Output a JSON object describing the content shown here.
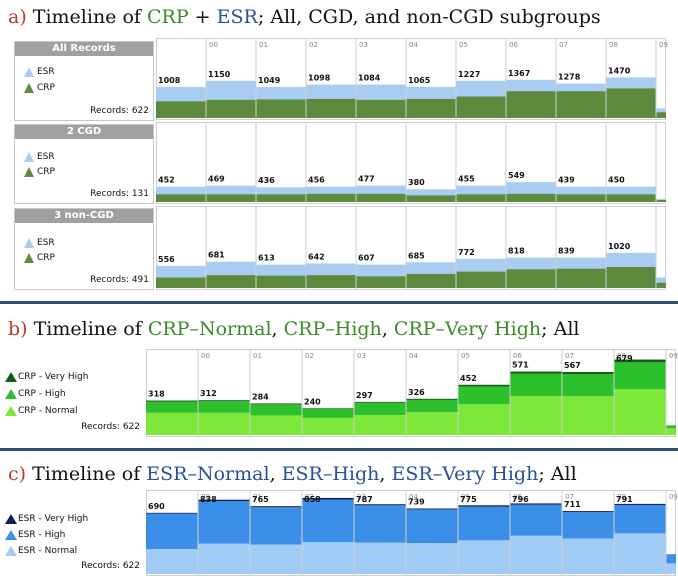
{
  "sections": [
    {
      "prefix": "a) ",
      "parts": [
        {
          "t": "Timeline of ",
          "c": "#111111"
        },
        {
          "t": "CRP",
          "c": "#3a8a2a"
        },
        {
          "t": " + ",
          "c": "#111111"
        },
        {
          "t": "ESR",
          "c": "#2a4f9c"
        },
        {
          "t": "; All, CGD, and non-CGD subgroups",
          "c": "#111111"
        }
      ]
    },
    {
      "prefix": "b) ",
      "parts": [
        {
          "t": "Timeline of ",
          "c": "#111111"
        },
        {
          "t": "CRP–Normal",
          "c": "#3a8a2a"
        },
        {
          "t": ", ",
          "c": "#111111"
        },
        {
          "t": "CRP–High",
          "c": "#3a8a2a"
        },
        {
          "t": ", ",
          "c": "#111111"
        },
        {
          "t": "CRP–Very High",
          "c": "#3a8a2a"
        },
        {
          "t": "; All",
          "c": "#111111"
        }
      ]
    },
    {
      "prefix": "c) ",
      "parts": [
        {
          "t": "Timeline of ",
          "c": "#111111"
        },
        {
          "t": "ESR–Normal",
          "c": "#2a4f9c"
        },
        {
          "t": ", ",
          "c": "#111111"
        },
        {
          "t": "ESR–High",
          "c": "#2a4f9c"
        },
        {
          "t": ", ",
          "c": "#111111"
        },
        {
          "t": "ESR–Very High",
          "c": "#2a4f9c"
        },
        {
          "t": "; All",
          "c": "#111111"
        }
      ]
    }
  ],
  "colors": {
    "esr_light": "#a9cdf2",
    "crp_dark": "#5e8a3e",
    "crp_normal": "#7ee83a",
    "crp_high": "#2cc02c",
    "crp_vhigh": "#155c1a",
    "esr_normal": "#9fcbf5",
    "esr_high": "#3b8fe8",
    "esr_vhigh": "#0e1a5a"
  },
  "chart_data": [
    {
      "type": "area",
      "id": "a_all",
      "group_label": "All Records",
      "records_label": "Records: 622",
      "periods": [
        "",
        "00",
        "01",
        "02",
        "03",
        "04",
        "05",
        "06",
        "07",
        "08",
        "09"
      ],
      "totals": [
        1008,
        1150,
        1049,
        1098,
        1084,
        1065,
        1227,
        1367,
        1278,
        1470,
        null
      ],
      "series": [
        {
          "name": "ESR",
          "values": [
            650,
            780,
            650,
            700,
            700,
            650,
            780,
            800,
            720,
            850,
            200
          ]
        },
        {
          "name": "CRP",
          "values": [
            350,
            380,
            390,
            400,
            380,
            400,
            450,
            560,
            560,
            620,
            120
          ]
        }
      ],
      "ylim": [
        0,
        1550
      ]
    },
    {
      "type": "area",
      "id": "a_cgd",
      "group_label": "2 CGD",
      "records_label": "Records: 131",
      "periods": [
        "",
        "",
        "",
        "",
        "",
        "",
        "",
        "",
        "",
        "",
        ""
      ],
      "totals": [
        452,
        469,
        436,
        456,
        477,
        380,
        455,
        549,
        439,
        450,
        null
      ],
      "series": [
        {
          "name": "ESR",
          "values": [
            300,
            320,
            290,
            300,
            320,
            250,
            320,
            390,
            300,
            300,
            60
          ]
        },
        {
          "name": "CRP",
          "values": [
            150,
            150,
            150,
            160,
            160,
            130,
            150,
            160,
            150,
            150,
            40
          ]
        }
      ],
      "ylim": [
        0,
        1450
      ]
    },
    {
      "type": "area",
      "id": "a_noncgd",
      "group_label": "3 non-CGD",
      "records_label": "Records: 491",
      "periods": [
        "",
        "",
        "",
        "",
        "",
        "",
        "",
        "",
        "",
        "",
        ""
      ],
      "totals": [
        556,
        681,
        613,
        642,
        607,
        685,
        772,
        818,
        839,
        1020,
        null
      ],
      "series": [
        {
          "name": "ESR",
          "values": [
            380,
            450,
            400,
            420,
            400,
            440,
            500,
            520,
            520,
            600,
            180
          ]
        },
        {
          "name": "CRP",
          "values": [
            180,
            220,
            210,
            220,
            200,
            240,
            280,
            320,
            330,
            360,
            90
          ]
        }
      ],
      "ylim": [
        0,
        1300
      ]
    },
    {
      "type": "area",
      "id": "b_crp",
      "records_label": "Records: 622",
      "periods": [
        "",
        "00",
        "01",
        "02",
        "03",
        "04",
        "05",
        "06",
        "07",
        "08",
        "09"
      ],
      "totals": [
        318,
        312,
        284,
        240,
        297,
        326,
        452,
        571,
        567,
        679,
        null
      ],
      "series": [
        {
          "name": "CRP - Very High",
          "values": [
            10,
            8,
            8,
            6,
            8,
            10,
            15,
            20,
            18,
            25,
            5
          ]
        },
        {
          "name": "CRP - High",
          "values": [
            100,
            105,
            100,
            80,
            110,
            110,
            160,
            200,
            200,
            240,
            20
          ]
        },
        {
          "name": "CRP - Normal",
          "values": [
            200,
            200,
            176,
            154,
            180,
            206,
            277,
            351,
            349,
            414,
            60
          ]
        }
      ],
      "ylim": [
        0,
        720
      ]
    },
    {
      "type": "area",
      "id": "c_esr",
      "records_label": "Records: 622",
      "periods": [
        "",
        "00",
        "01",
        "02",
        "03",
        "04",
        "05",
        "06",
        "07",
        "08",
        "09"
      ],
      "totals": [
        690,
        838,
        765,
        858,
        787,
        739,
        775,
        796,
        711,
        791,
        null
      ],
      "series": [
        {
          "name": "ESR - Very High",
          "values": [
            8,
            15,
            12,
            18,
            12,
            10,
            15,
            14,
            10,
            12,
            2
          ]
        },
        {
          "name": "ESR - High",
          "values": [
            400,
            480,
            420,
            480,
            420,
            380,
            380,
            350,
            300,
            320,
            100
          ]
        },
        {
          "name": "ESR - Normal",
          "values": [
            282,
            343,
            333,
            360,
            355,
            349,
            380,
            432,
            401,
            459,
            120
          ]
        }
      ],
      "ylim": [
        0,
        880
      ]
    }
  ]
}
